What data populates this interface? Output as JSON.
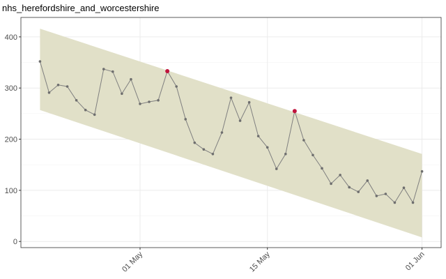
{
  "chart_data": {
    "type": "line",
    "title": "nhs_herefordshire_and_worcestershire",
    "x": [
      "20 Apr",
      "21 Apr",
      "22 Apr",
      "23 Apr",
      "24 Apr",
      "25 Apr",
      "26 Apr",
      "27 Apr",
      "28 Apr",
      "29 Apr",
      "30 Apr",
      "01 May",
      "02 May",
      "03 May",
      "04 May",
      "05 May",
      "06 May",
      "07 May",
      "08 May",
      "09 May",
      "10 May",
      "11 May",
      "12 May",
      "13 May",
      "14 May",
      "15 May",
      "16 May",
      "17 May",
      "18 May",
      "19 May",
      "20 May",
      "21 May",
      "22 May",
      "23 May",
      "24 May",
      "25 May",
      "26 May",
      "27 May",
      "28 May",
      "29 May",
      "30 May",
      "31 May",
      "01 Jun"
    ],
    "series": [
      {
        "color": "#7f7f7f",
        "values": [
          352,
          291,
          306,
          303,
          276,
          257,
          248,
          337,
          332,
          289,
          317,
          269,
          273,
          276,
          333,
          303,
          239,
          193,
          180,
          171,
          213,
          281,
          236,
          272,
          206,
          184,
          142,
          171,
          255,
          198,
          169,
          143,
          113,
          130,
          106,
          97,
          119,
          89,
          93,
          76,
          105,
          76,
          137
        ],
        "point_colors": [
          "#6e6e6e",
          "#6e6e6e",
          "#6e6e6e",
          "#6e6e6e",
          "#6e6e6e",
          "#6e6e6e",
          "#6e6e6e",
          "#6e6e6e",
          "#6e6e6e",
          "#6e6e6e",
          "#6e6e6e",
          "#6e6e6e",
          "#6e6e6e",
          "#6e6e6e",
          "#c0143c",
          "#6e6e6e",
          "#6e6e6e",
          "#6e6e6e",
          "#6e6e6e",
          "#6e6e6e",
          "#6e6e6e",
          "#6e6e6e",
          "#6e6e6e",
          "#6e6e6e",
          "#6e6e6e",
          "#6e6e6e",
          "#6e6e6e",
          "#6e6e6e",
          "#c0143c",
          "#6e6e6e",
          "#6e6e6e",
          "#6e6e6e",
          "#6e6e6e",
          "#6e6e6e",
          "#6e6e6e",
          "#6e6e6e",
          "#6e6e6e",
          "#6e6e6e",
          "#6e6e6e",
          "#6e6e6e",
          "#6e6e6e",
          "#6e6e6e",
          "#6e6e6e"
        ]
      }
    ],
    "band": {
      "color": "#e1e0c8",
      "x": [
        "20 Apr",
        "01 Jun"
      ],
      "upper": [
        416,
        171
      ],
      "lower": [
        257,
        8
      ]
    },
    "ylim": [
      -12,
      438
    ],
    "yticks": [
      0,
      100,
      200,
      300,
      400
    ],
    "xticks": [
      "01 May",
      "15 May",
      "01 Jun"
    ],
    "grid": true
  }
}
